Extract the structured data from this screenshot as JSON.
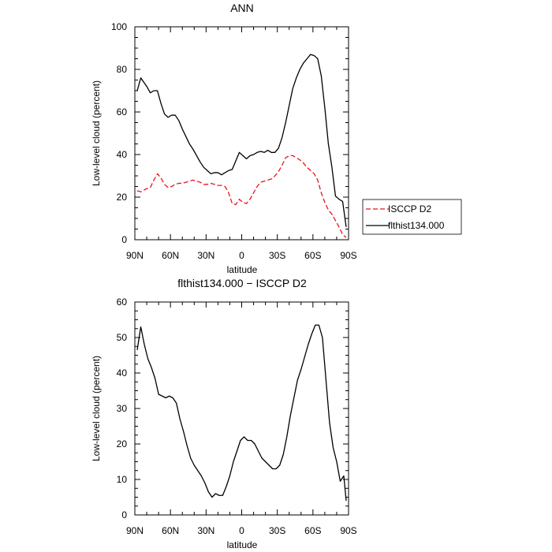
{
  "chart_data": [
    {
      "type": "line",
      "title": "ANN",
      "xlabel": "latitude",
      "ylabel": "Low-level cloud (percent)",
      "ylim": [
        0,
        100
      ],
      "yticks": [
        "0",
        "20",
        "40",
        "60",
        "80",
        "100"
      ],
      "xlim": [
        90,
        -90
      ],
      "xtick_values": [
        90,
        60,
        30,
        0,
        -30,
        -60,
        -90
      ],
      "xtick_labels": [
        "90N",
        "60N",
        "30N",
        "0",
        "30S",
        "60S",
        "90S"
      ],
      "legend_position": "right",
      "x": [
        88,
        85,
        80,
        77,
        74,
        71,
        68,
        65,
        62,
        59,
        56,
        53,
        50,
        47,
        44,
        41,
        38,
        35,
        32,
        29,
        26,
        23,
        20,
        17,
        14,
        11,
        8,
        5,
        2,
        -1,
        -4,
        -7,
        -10,
        -13,
        -16,
        -19,
        -22,
        -25,
        -28,
        -31,
        -34,
        -37,
        -40,
        -43,
        -46,
        -49,
        -52,
        -55,
        -58,
        -61,
        -64,
        -67,
        -70,
        -73,
        -76,
        -79,
        -82,
        -85,
        -88
      ],
      "series": [
        {
          "name": "ISCCP D2",
          "color": "#e8141b",
          "dashed": true,
          "values": [
            23,
            22.5,
            24,
            24.5,
            28,
            31,
            29,
            26,
            24.5,
            25,
            26,
            26.5,
            26.5,
            27,
            27.5,
            28,
            27.5,
            27,
            26,
            26,
            26.5,
            26,
            25.5,
            25.5,
            25,
            22,
            17,
            16.5,
            19,
            17.5,
            17,
            19,
            22,
            25,
            27,
            27.5,
            28,
            28.5,
            30,
            32,
            35,
            38.5,
            39.5,
            39.5,
            38.5,
            37.5,
            36,
            34,
            32.5,
            31,
            28,
            22,
            17.5,
            14,
            12,
            9,
            6,
            2.5,
            1
          ]
        },
        {
          "name": "flthist134.000",
          "color": "#000000",
          "dashed": false,
          "values": [
            70,
            76,
            72,
            69,
            70,
            70,
            64,
            59,
            57.5,
            58.5,
            58.5,
            56,
            52,
            48.5,
            45,
            42.5,
            39.5,
            36.5,
            34,
            32.5,
            31,
            31.5,
            31.5,
            30.5,
            31.5,
            32.5,
            33,
            37,
            41,
            39.5,
            38,
            39.5,
            40,
            41,
            41.5,
            41,
            42,
            41,
            41,
            43,
            48,
            55,
            63,
            71,
            76,
            80,
            83,
            85,
            87,
            86.5,
            85,
            77,
            62,
            45,
            34,
            20.5,
            19,
            18,
            6
          ]
        }
      ]
    },
    {
      "type": "line",
      "title": "flthist134.000 − ISCCP D2",
      "xlabel": "latitude",
      "ylabel": "Low-level cloud (percent)",
      "ylim": [
        0,
        60
      ],
      "yticks": [
        "0",
        "10",
        "20",
        "30",
        "40",
        "50",
        "60"
      ],
      "xlim": [
        90,
        -90
      ],
      "xtick_values": [
        90,
        60,
        30,
        0,
        -30,
        -60,
        -90
      ],
      "xtick_labels": [
        "90N",
        "60N",
        "30N",
        "0",
        "30S",
        "60S",
        "90S"
      ],
      "x": [
        88,
        85,
        82,
        79,
        76,
        73,
        70,
        67,
        64,
        61,
        58,
        55,
        52,
        49,
        46,
        43,
        40,
        37,
        34,
        31,
        28,
        25,
        22,
        19,
        16,
        13,
        10,
        7,
        4,
        1,
        -2,
        -5,
        -8,
        -11,
        -14,
        -17,
        -20,
        -23,
        -26,
        -29,
        -32,
        -35,
        -38,
        -41,
        -44,
        -47,
        -50,
        -53,
        -56,
        -59,
        -62,
        -65,
        -68,
        -71,
        -74,
        -77,
        -80,
        -83,
        -86,
        -88
      ],
      "series": [
        {
          "name": "",
          "color": "#000000",
          "dashed": false,
          "values": [
            46.5,
            53,
            48,
            44,
            41.5,
            38.5,
            34,
            33.5,
            33,
            33.5,
            33,
            31.5,
            27,
            23.5,
            19.5,
            16,
            14,
            12.5,
            11,
            9,
            6.5,
            5,
            6,
            5.5,
            5.5,
            8,
            11,
            15,
            18,
            21,
            22,
            21,
            21,
            20,
            18,
            16,
            15,
            14,
            13,
            13,
            14,
            17,
            22,
            28,
            33,
            38,
            41,
            44.5,
            48,
            51,
            53.5,
            53.5,
            50,
            38,
            26,
            19,
            15,
            9.5,
            11,
            4
          ]
        }
      ]
    }
  ]
}
